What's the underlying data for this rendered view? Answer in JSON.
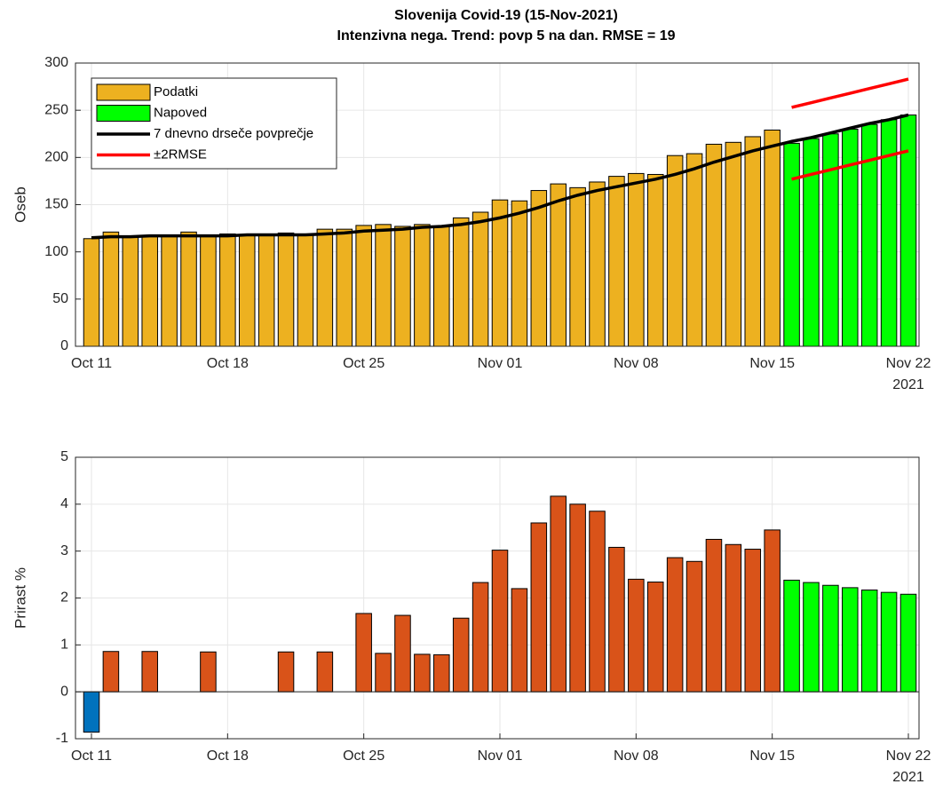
{
  "chart_data": [
    {
      "type": "bar",
      "title": "Slovenija Covid-19 (15-Nov-2021)",
      "subtitle": "Intenzivna nega. Trend: povp 5 na dan. RMSE = 19",
      "ylabel": "Oseb",
      "x_year": "2021",
      "categories": [
        "Oct 11",
        null,
        null,
        null,
        null,
        null,
        null,
        "Oct 18",
        null,
        null,
        null,
        null,
        null,
        null,
        "Oct 25",
        null,
        null,
        null,
        null,
        null,
        null,
        "Nov 01",
        null,
        null,
        null,
        null,
        null,
        null,
        "Nov 08",
        null,
        null,
        null,
        null,
        null,
        null,
        "Nov 15",
        null,
        null,
        null,
        null,
        null,
        null,
        "Nov 22"
      ],
      "ylim": [
        0,
        300
      ],
      "yticks": [
        0,
        50,
        100,
        150,
        200,
        250,
        300
      ],
      "grid": true,
      "legend": "upper left",
      "series": [
        {
          "name": "Podatki",
          "type": "bar",
          "color": "#edb120",
          "values": [
            114,
            121,
            116,
            117,
            117,
            121,
            118,
            119,
            118,
            118,
            120,
            118,
            124,
            124,
            128,
            129,
            127,
            129,
            127,
            136,
            142,
            155,
            154,
            165,
            172,
            168,
            174,
            180,
            183,
            182,
            202,
            204,
            214,
            216,
            222,
            229,
            null,
            null,
            null,
            null,
            null,
            null,
            null
          ]
        },
        {
          "name": "Napoved",
          "type": "bar",
          "color": "#00ff00",
          "values": [
            null,
            null,
            null,
            null,
            null,
            null,
            null,
            null,
            null,
            null,
            null,
            null,
            null,
            null,
            null,
            null,
            null,
            null,
            null,
            null,
            null,
            null,
            null,
            null,
            null,
            null,
            null,
            null,
            null,
            null,
            null,
            null,
            null,
            null,
            null,
            null,
            215,
            220,
            225,
            230,
            235,
            240,
            245
          ]
        },
        {
          "name": "7 dnevno drseče povprečje",
          "type": "line",
          "color": "#000000",
          "values": [
            115,
            116,
            116,
            117,
            117,
            117,
            117,
            117,
            118,
            118,
            118,
            118,
            119,
            120,
            122,
            123,
            124,
            126,
            127,
            129,
            132,
            136,
            141,
            147,
            154,
            160,
            165,
            169,
            173,
            177,
            182,
            188,
            195,
            201,
            207,
            212,
            217,
            221,
            226,
            231,
            236,
            240,
            245
          ]
        },
        {
          "name": "±2RMSE",
          "type": "line",
          "color": "#ff0000",
          "values": [
            null,
            null,
            null,
            null,
            null,
            null,
            null,
            null,
            null,
            null,
            null,
            null,
            null,
            null,
            null,
            null,
            null,
            null,
            null,
            null,
            null,
            null,
            null,
            null,
            null,
            null,
            null,
            null,
            null,
            null,
            null,
            null,
            null,
            null,
            null,
            null,
            253,
            258,
            263,
            268,
            273,
            278,
            283
          ],
          "values_lower": [
            null,
            null,
            null,
            null,
            null,
            null,
            null,
            null,
            null,
            null,
            null,
            null,
            null,
            null,
            null,
            null,
            null,
            null,
            null,
            null,
            null,
            null,
            null,
            null,
            null,
            null,
            null,
            null,
            null,
            null,
            null,
            null,
            null,
            null,
            null,
            null,
            177,
            182,
            187,
            192,
            197,
            202,
            207
          ]
        }
      ]
    },
    {
      "type": "bar",
      "ylabel": "Prirast %",
      "x_year": "2021",
      "categories": [
        "Oct 11",
        null,
        null,
        null,
        null,
        null,
        null,
        "Oct 18",
        null,
        null,
        null,
        null,
        null,
        null,
        "Oct 25",
        null,
        null,
        null,
        null,
        null,
        null,
        "Nov 01",
        null,
        null,
        null,
        null,
        null,
        null,
        "Nov 08",
        null,
        null,
        null,
        null,
        null,
        null,
        "Nov 15",
        null,
        null,
        null,
        null,
        null,
        null,
        "Nov 22"
      ],
      "ylim": [
        -1,
        5
      ],
      "yticks": [
        -1,
        0,
        1,
        2,
        3,
        4,
        5
      ],
      "grid": true,
      "series": [
        {
          "type": "bar",
          "color": "#d95319",
          "negative_color": "#0072bd",
          "values": [
            -0.86,
            0.86,
            0,
            0.86,
            0,
            0,
            0.85,
            0,
            0,
            0,
            0.85,
            0,
            0.85,
            0,
            1.67,
            0.82,
            1.63,
            0.8,
            0.79,
            1.57,
            2.33,
            3.02,
            2.2,
            3.6,
            4.17,
            4.0,
            3.85,
            3.08,
            2.4,
            2.34,
            2.86,
            2.78,
            3.25,
            3.14,
            3.04,
            3.45,
            null,
            null,
            null,
            null,
            null,
            null,
            null
          ]
        },
        {
          "type": "bar",
          "color": "#00ff00",
          "values": [
            null,
            null,
            null,
            null,
            null,
            null,
            null,
            null,
            null,
            null,
            null,
            null,
            null,
            null,
            null,
            null,
            null,
            null,
            null,
            null,
            null,
            null,
            null,
            null,
            null,
            null,
            null,
            null,
            null,
            null,
            null,
            null,
            null,
            null,
            null,
            null,
            2.38,
            2.33,
            2.27,
            2.22,
            2.17,
            2.12,
            2.08
          ]
        }
      ]
    }
  ]
}
